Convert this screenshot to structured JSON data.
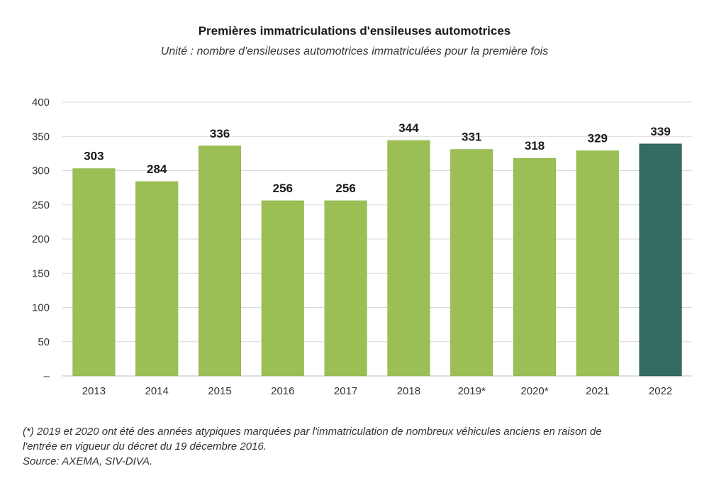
{
  "chart_data": {
    "type": "bar",
    "title": "Premières immatriculations d'ensileuses automotrices",
    "subtitle": "Unité : nombre d'ensileuses automotrices immatriculées pour la première fois",
    "categories": [
      "2013",
      "2014",
      "2015",
      "2016",
      "2017",
      "2018",
      "2019*",
      "2020*",
      "2021",
      "2022"
    ],
    "values": [
      303,
      284,
      336,
      256,
      256,
      344,
      331,
      318,
      329,
      339
    ],
    "ylim": [
      0,
      400
    ],
    "yticks": [
      0,
      50,
      100,
      150,
      200,
      250,
      300,
      350,
      400
    ],
    "ytick_labels": [
      "–",
      "50",
      "100",
      "150",
      "200",
      "250",
      "300",
      "350",
      "400"
    ],
    "grid": true,
    "data_labels": true,
    "colors": {
      "default": "#9bbf55",
      "highlight": "#356b60",
      "highlight_index": 9,
      "grid": "#d9d9d9",
      "axis": "#bfbfbf"
    }
  },
  "footnote": {
    "line1": "(*) 2019 et 2020 ont été des années atypiques marquées par l'immatriculation de nombreux véhicules anciens en raison de",
    "line2": "l'entrée en vigueur du décret du 19 décembre 2016.",
    "source": "Source: AXEMA, SIV-DIVA."
  }
}
